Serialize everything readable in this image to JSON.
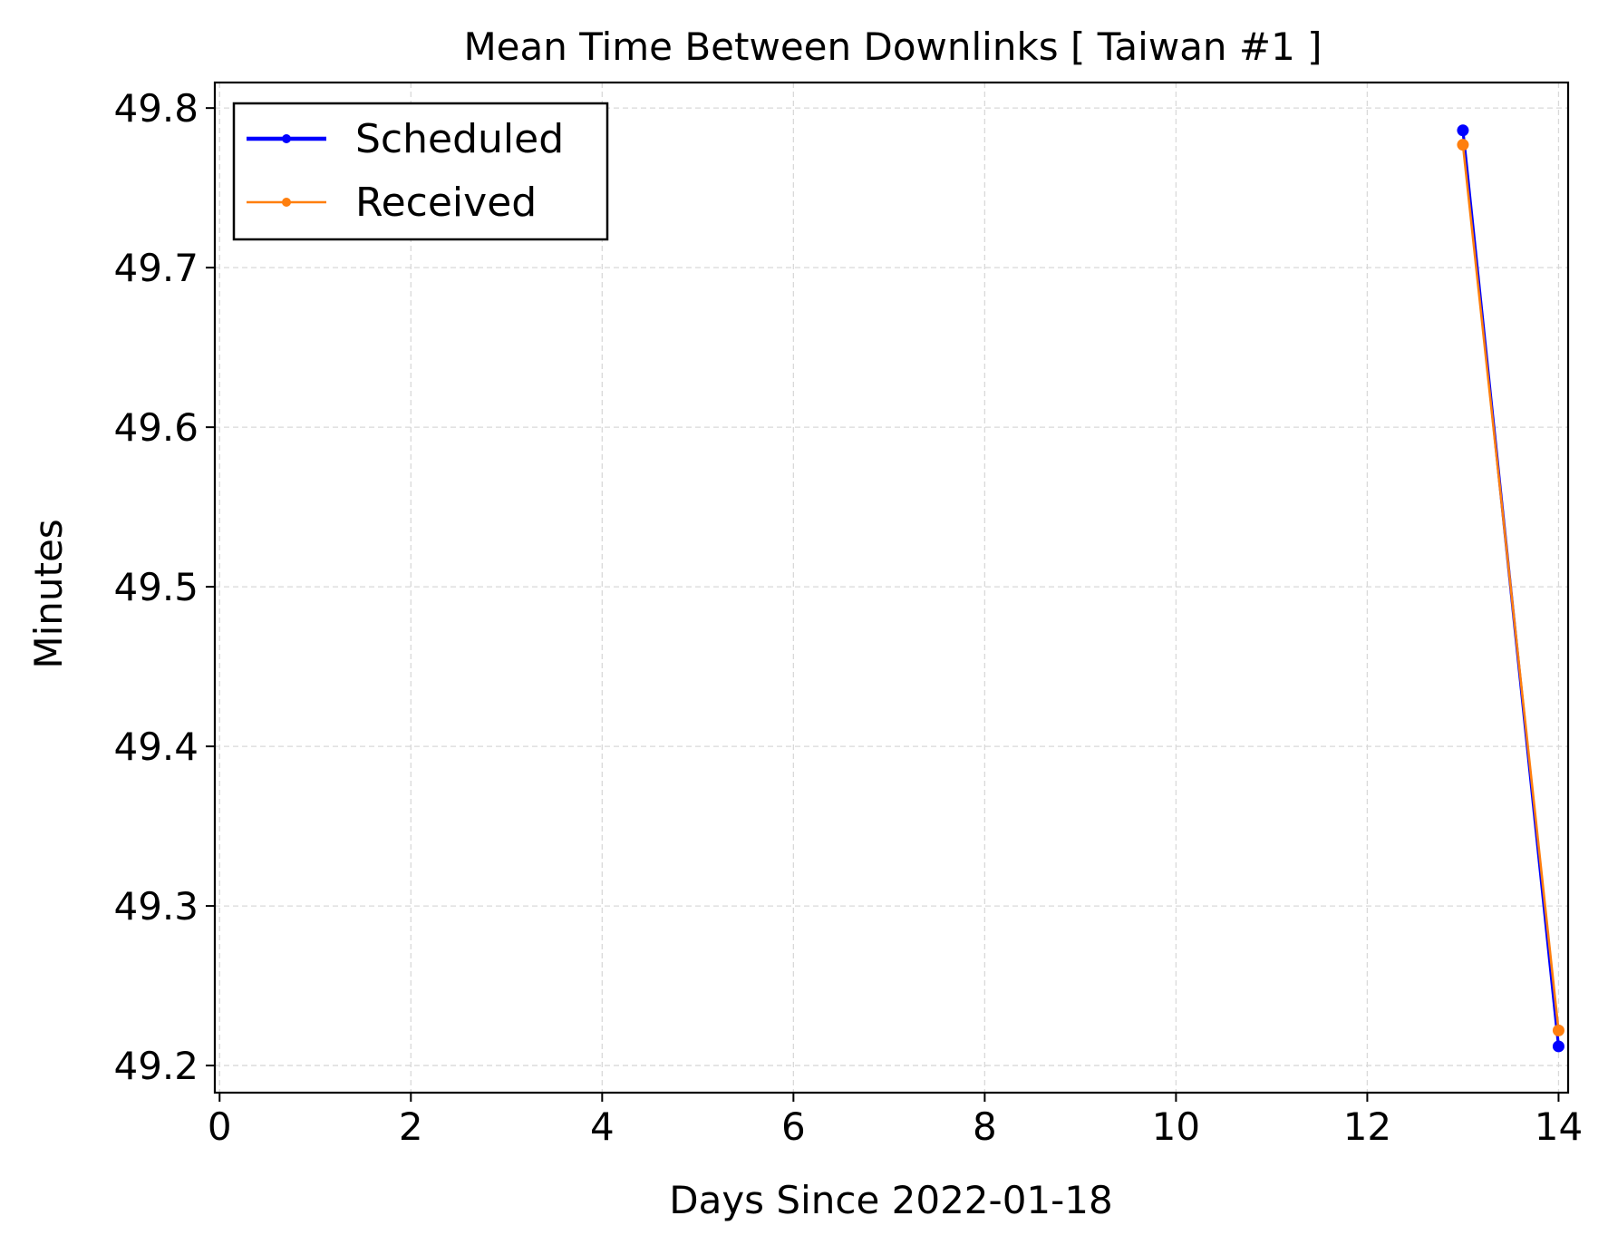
{
  "chart_data": {
    "type": "line",
    "title": "Mean Time Between Downlinks [ Taiwan #1 ]",
    "xlabel": "Days Since 2022-01-18",
    "ylabel": "Minutes",
    "xlim": [
      -0.05,
      14.1
    ],
    "ylim": [
      49.183,
      49.816
    ],
    "xticks": [
      0,
      2,
      4,
      6,
      8,
      10,
      12,
      14
    ],
    "yticks": [
      49.2,
      49.3,
      49.4,
      49.5,
      49.6,
      49.7,
      49.8
    ],
    "xtick_labels": [
      "0",
      "2",
      "4",
      "6",
      "8",
      "10",
      "12",
      "14"
    ],
    "ytick_labels": [
      "49.2",
      "49.3",
      "49.4",
      "49.5",
      "49.6",
      "49.7",
      "49.8"
    ],
    "grid": true,
    "legend_position": "top-left",
    "series": [
      {
        "name": "Scheduled",
        "color": "#0000ff",
        "x": [
          13,
          14
        ],
        "y": [
          49.786,
          49.212
        ]
      },
      {
        "name": "Received",
        "color": "#ff7f0e",
        "x": [
          13,
          14
        ],
        "y": [
          49.777,
          49.222
        ]
      }
    ]
  }
}
